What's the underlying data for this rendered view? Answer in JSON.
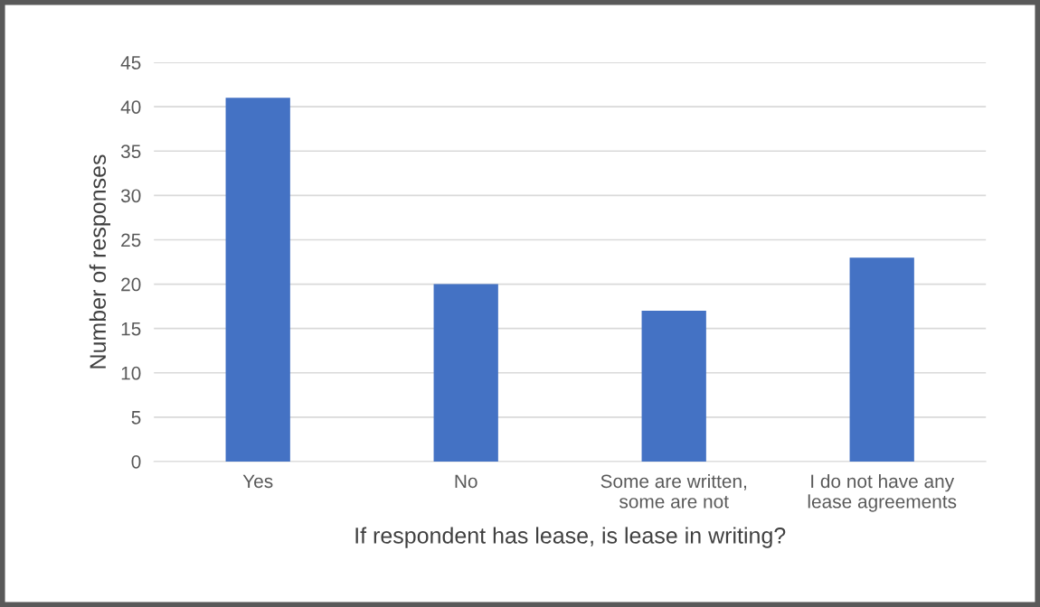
{
  "chart_data": {
    "type": "bar",
    "xlabel": "If respondent has lease, is lease in writing?",
    "ylabel": "Number of responses",
    "categories": [
      "Yes",
      "No",
      "Some are written,\nsome are not",
      "I do not have any\nlease agreements"
    ],
    "values": [
      41,
      20,
      17,
      23
    ],
    "color": "#4472c4",
    "ylim": [
      0,
      45
    ],
    "yticks": [
      0,
      5,
      10,
      15,
      20,
      25,
      30,
      35,
      40,
      45
    ],
    "grid": "y",
    "legend": false
  }
}
